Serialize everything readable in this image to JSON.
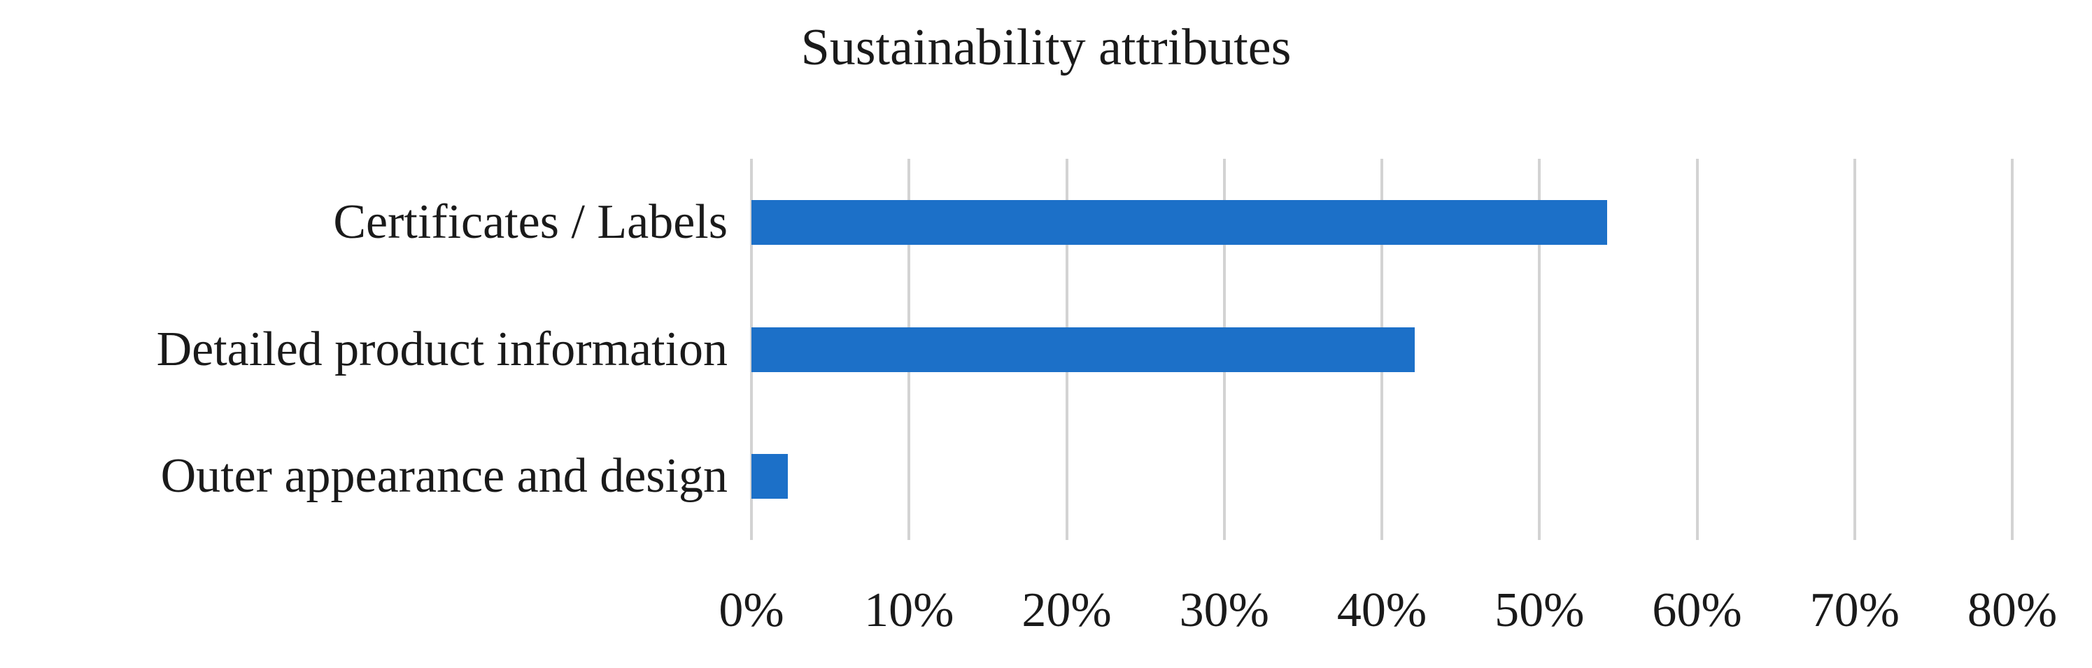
{
  "chart_data": {
    "type": "bar",
    "orientation": "horizontal",
    "title": "Sustainability attributes",
    "categories": [
      "Certificates / Labels",
      "Detailed product information",
      "Outer appearance and design"
    ],
    "values": [
      54.3,
      42.1,
      2.3
    ],
    "value_unit": "%",
    "xlabel": "",
    "ylabel": "",
    "xlim": [
      0,
      80
    ],
    "xtick_values": [
      0,
      10,
      20,
      30,
      40,
      50,
      60,
      70,
      80
    ],
    "xtick_labels": [
      "0%",
      "10%",
      "20%",
      "30%",
      "40%",
      "50%",
      "60%",
      "70%",
      "80%"
    ],
    "grid": "vertical-gridlines-on",
    "legend": "none",
    "colors": {
      "bar": "#1c70c8",
      "gridline": "#d3d3d3",
      "text": "#1a1a1a",
      "background": "#ffffff"
    }
  }
}
